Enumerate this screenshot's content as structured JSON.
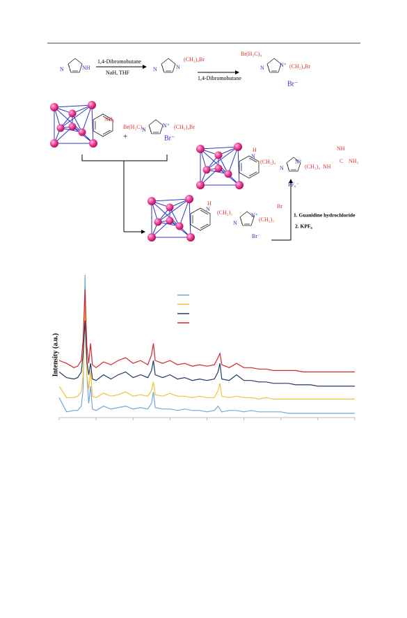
{
  "scheme": {
    "labels": [
      "N",
      "NH",
      "1,4-Dibromobutane",
      "NaH, THF",
      "N",
      "N",
      "(CH₂)₄Br",
      "1,4-Dibromobutane",
      "Br(H₂C)₄",
      "N",
      "N⁺",
      "(CH₂)₄Br",
      "Br⁻",
      "NH₂",
      "+",
      "Br(H₂C)₄",
      "N",
      "N⁺",
      "(CH₂)₄Br",
      "Br⁻",
      "H",
      "N",
      "(CH₂)₄",
      "N",
      "N⁺",
      "(CH₂)₄",
      "NH",
      "NH",
      "C",
      "NH₂",
      "PF₆⁻",
      "H",
      "N",
      "(CH₂)₂",
      "N",
      "N⁺",
      "(CH₂)₃",
      "Br",
      "Br⁻",
      "1. Guanidine hydrochloride",
      "2. KPF₆"
    ]
  },
  "chart_data": {
    "type": "line",
    "ylabel": "Intensity (a.u.)",
    "x": [
      5,
      7,
      9,
      10,
      11,
      11.5,
      12,
      12.5,
      13,
      13.5,
      14,
      15,
      17,
      19,
      21,
      23,
      25,
      27,
      29,
      30,
      30.5,
      31,
      33,
      35,
      37,
      39,
      41,
      43,
      45,
      47,
      48,
      48.5,
      49,
      51,
      53,
      55,
      57,
      59,
      61,
      63,
      65,
      67,
      69,
      71,
      73,
      75,
      77,
      79,
      81,
      83,
      85
    ],
    "xlim": [
      5,
      85
    ],
    "xticks": [
      5,
      15,
      25,
      35,
      45,
      55,
      65,
      75,
      85
    ],
    "ylim": [
      0,
      100
    ],
    "series": [
      {
        "color": "#6fa8dc",
        "values": [
          14,
          4,
          5,
          5,
          8,
          20,
          100,
          30,
          10,
          22,
          6,
          5,
          8,
          6,
          7,
          8,
          6,
          7,
          6,
          10,
          18,
          7,
          6,
          6,
          5,
          6,
          5,
          5,
          4,
          5,
          8,
          6,
          4,
          5,
          5,
          4,
          5,
          4,
          4,
          4,
          4,
          3,
          3,
          3,
          3,
          3,
          3,
          3,
          3,
          3,
          3
        ]
      },
      {
        "color": "#f3c037",
        "values": [
          22,
          14,
          14,
          15,
          18,
          30,
          80,
          30,
          20,
          33,
          15,
          14,
          17,
          15,
          16,
          18,
          15,
          16,
          15,
          19,
          25,
          16,
          15,
          17,
          15,
          15,
          14,
          15,
          14,
          14,
          19,
          24,
          15,
          14,
          15,
          14,
          14,
          13,
          14,
          13,
          13,
          13,
          13,
          13,
          13,
          13,
          13,
          13,
          13,
          13,
          13
        ]
      },
      {
        "color": "#1f3864",
        "values": [
          32,
          28,
          27,
          28,
          32,
          45,
          68,
          40,
          30,
          38,
          27,
          26,
          30,
          27,
          30,
          32,
          28,
          30,
          28,
          33,
          40,
          30,
          28,
          30,
          27,
          28,
          26,
          27,
          26,
          27,
          32,
          38,
          27,
          26,
          30,
          26,
          26,
          25,
          25,
          24,
          24,
          24,
          23,
          23,
          23,
          22,
          22,
          22,
          22,
          22,
          22
        ]
      },
      {
        "color": "#d6232a",
        "values": [
          40,
          38,
          35,
          36,
          40,
          55,
          90,
          50,
          38,
          52,
          37,
          35,
          39,
          37,
          40,
          42,
          38,
          40,
          37,
          44,
          52,
          40,
          38,
          40,
          37,
          38,
          36,
          37,
          36,
          37,
          42,
          45,
          37,
          35,
          38,
          35,
          35,
          34,
          34,
          33,
          33,
          33,
          33,
          32,
          32,
          32,
          32,
          32,
          32,
          32,
          32
        ]
      }
    ]
  }
}
